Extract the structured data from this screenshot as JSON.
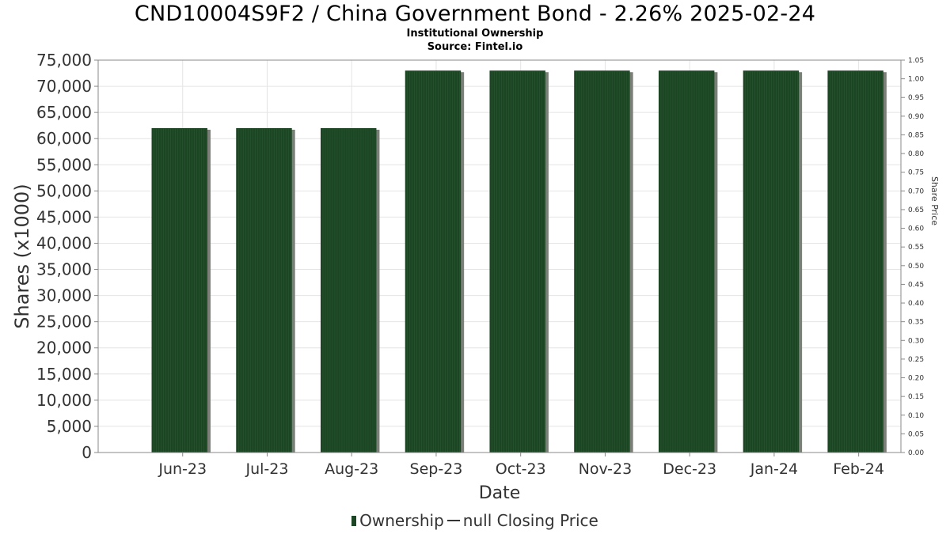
{
  "header": {
    "title": "CND10004S9F2 / China Government Bond - 2.26% 2025-02-24",
    "subtitle1": "Institutional Ownership",
    "subtitle2": "Source: Fintel.io"
  },
  "legend": {
    "ownership_label": "Ownership",
    "price_label": "null Closing Price"
  },
  "colors": {
    "bar": "#1b4523",
    "bar_shadow": "#7a8078",
    "grid": "#e4e4e4",
    "axis": "#888888"
  },
  "chart_data": {
    "type": "bar",
    "categories": [
      "Jun-23",
      "Jul-23",
      "Aug-23",
      "Sep-23",
      "Oct-23",
      "Nov-23",
      "Dec-23",
      "Jan-24",
      "Feb-24"
    ],
    "series": [
      {
        "name": "Ownership",
        "values": [
          62000,
          62000,
          62000,
          73000,
          73000,
          73000,
          73000,
          73000,
          73000
        ]
      }
    ],
    "xlabel": "Date",
    "ylabel": "Shares (x1000)",
    "ylim": [
      0,
      75000
    ],
    "y_ticks": [
      "0",
      "5,000",
      "10,000",
      "15,000",
      "20,000",
      "25,000",
      "30,000",
      "35,000",
      "40,000",
      "45,000",
      "50,000",
      "55,000",
      "60,000",
      "65,000",
      "70,000",
      "75,000"
    ],
    "y2label": "Share Price",
    "y2lim": [
      0,
      1.05
    ],
    "y2_ticks": [
      "0.00",
      "0.05",
      "0.10",
      "0.15",
      "0.20",
      "0.25",
      "0.30",
      "0.35",
      "0.40",
      "0.45",
      "0.50",
      "0.55",
      "0.60",
      "0.65",
      "0.70",
      "0.75",
      "0.80",
      "0.85",
      "0.90",
      "0.95",
      "1.00",
      "1.05"
    ],
    "grid": true,
    "legend_position": "bottom"
  }
}
